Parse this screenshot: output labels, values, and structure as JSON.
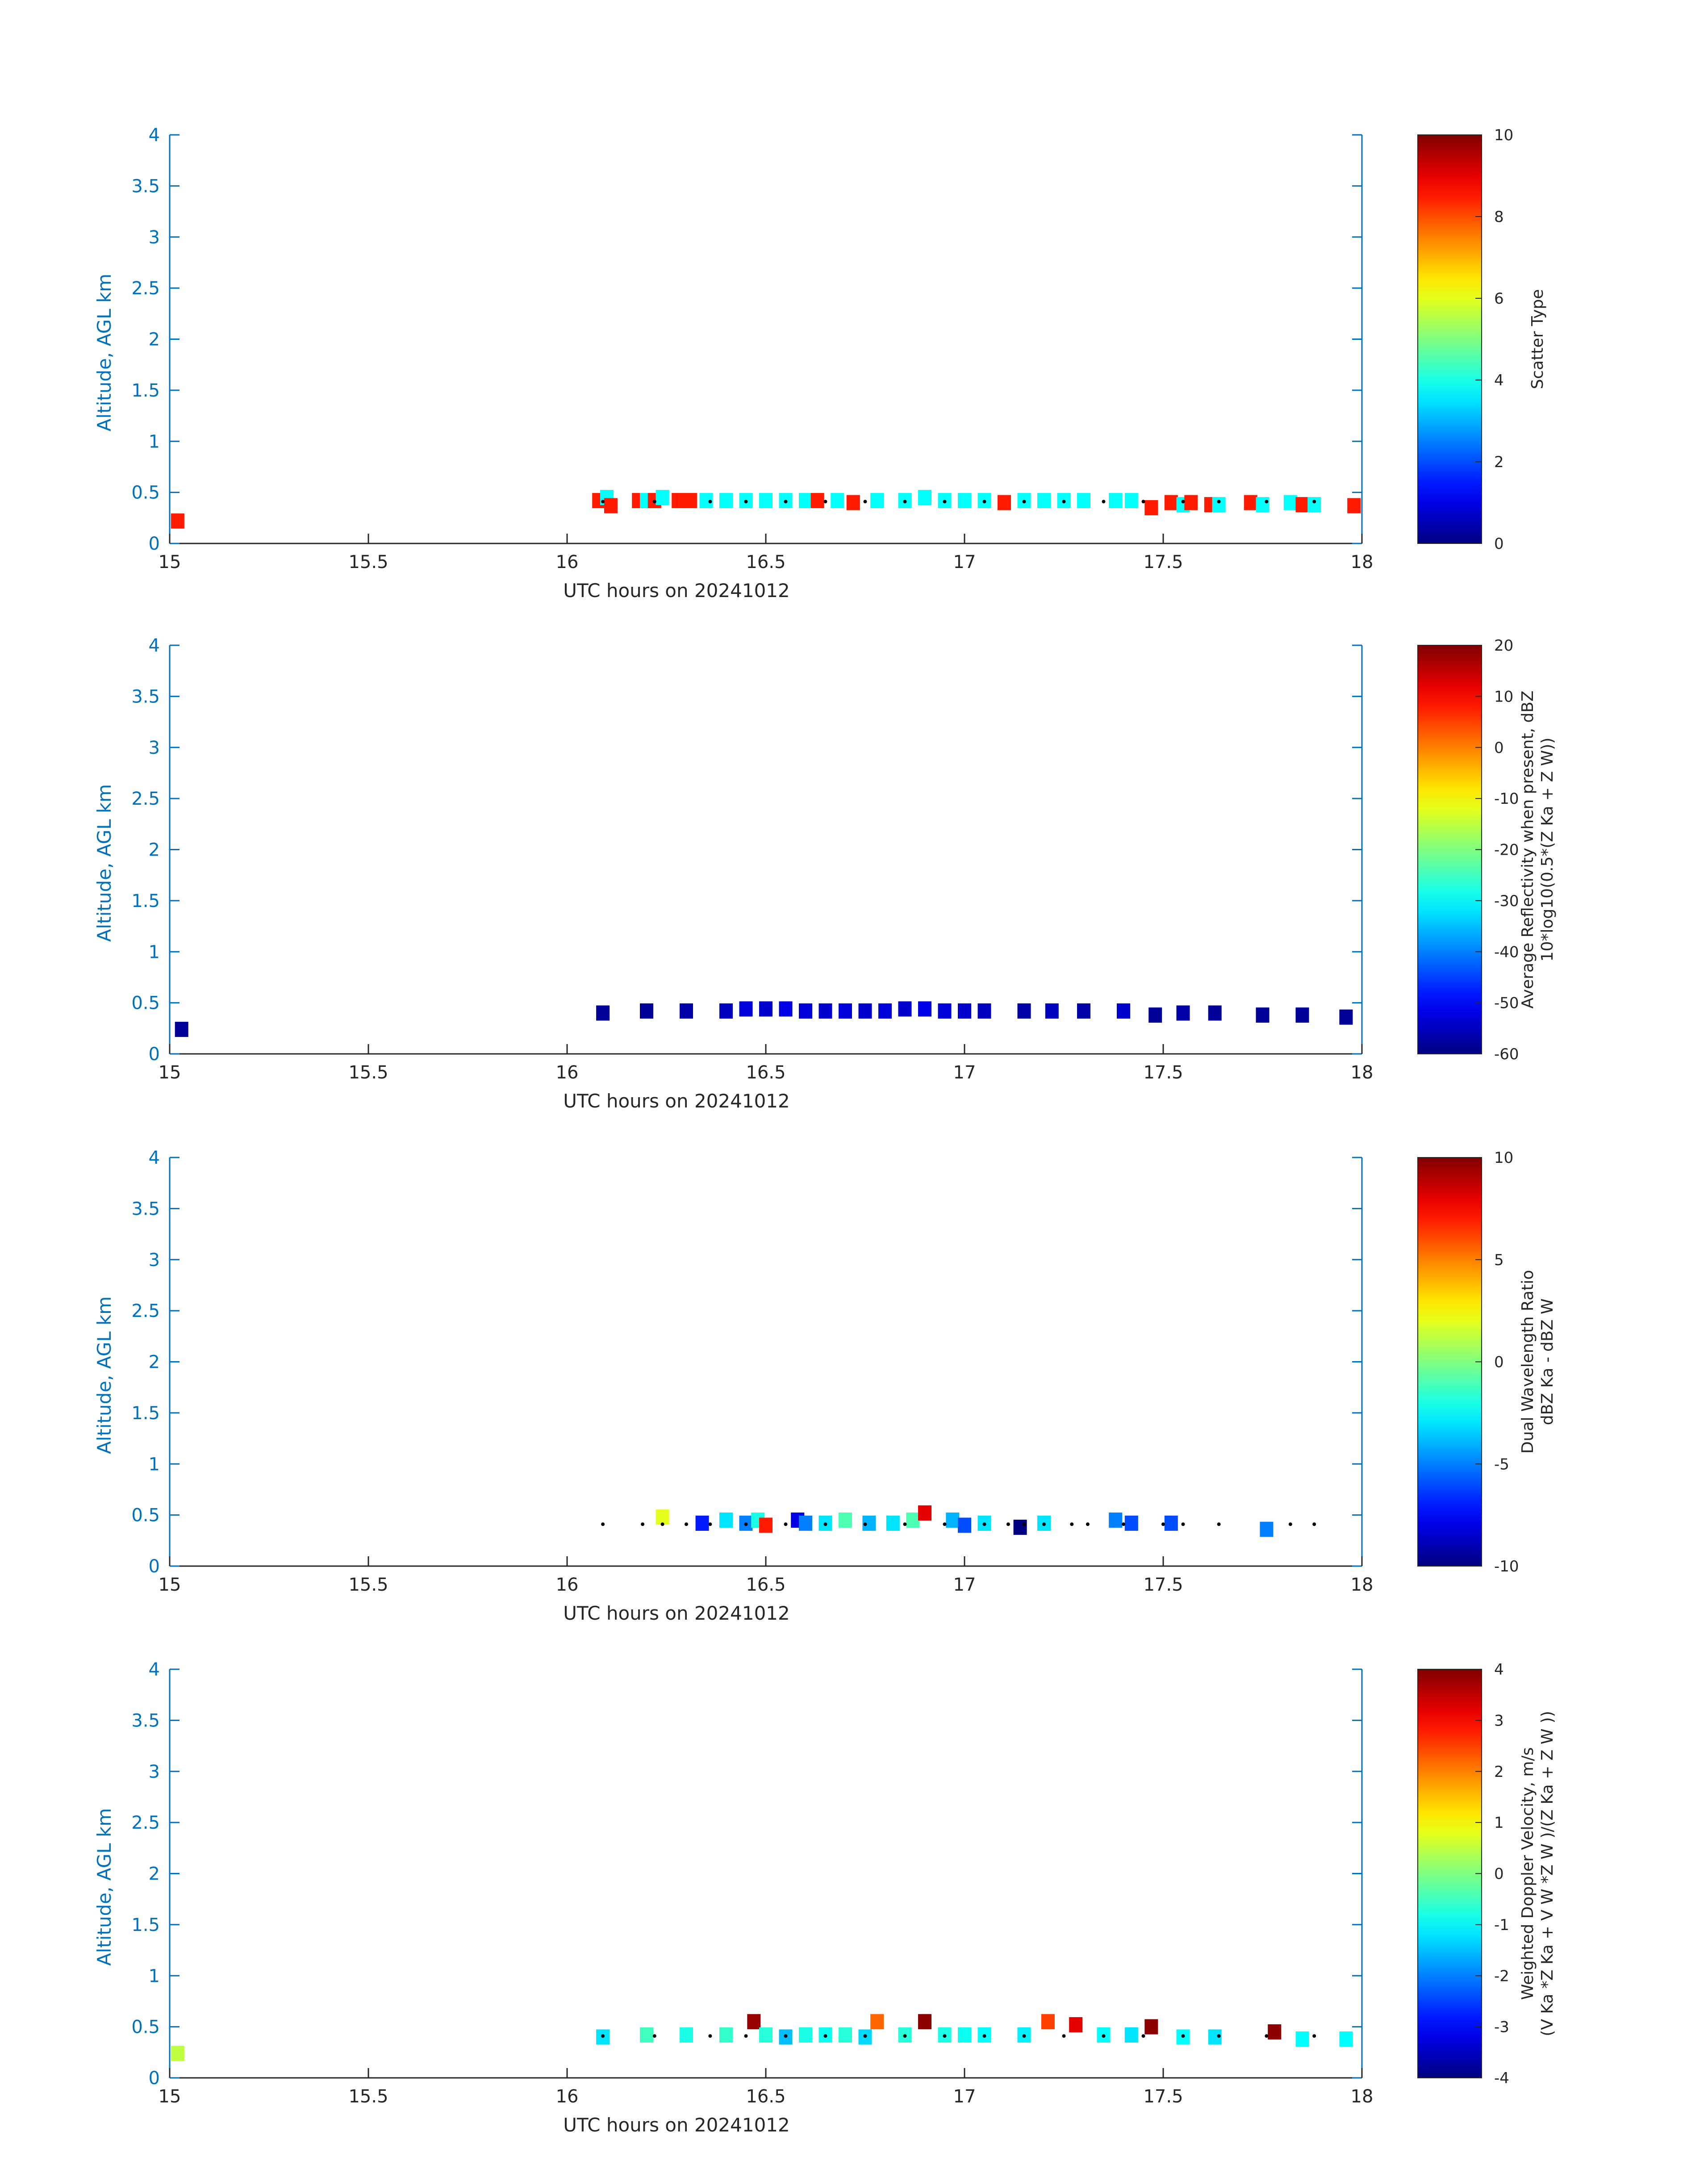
{
  "figure": {
    "common": {
      "xlim": [
        15,
        18
      ],
      "ylim": [
        0,
        4
      ],
      "xticks": [
        "15",
        "15.5",
        "16",
        "16.5",
        "17",
        "17.5",
        "18"
      ],
      "yticks": [
        "0",
        "0.5",
        "1",
        "1.5",
        "2",
        "2.5",
        "3",
        "3.5",
        "4"
      ],
      "xlabel": "UTC hours on 20241012",
      "ylabel": "Altitude, AGL km",
      "axis_color": "#0072BD",
      "text_color": "#262626",
      "marker_color": "#000000",
      "colormap": "jet"
    },
    "panels": [
      {
        "name": "scatter-type",
        "colorbar": {
          "range": [
            0,
            10
          ],
          "ticks": [
            "0",
            "2",
            "4",
            "6",
            "8",
            "10"
          ],
          "title_lines": [
            "Scatter Type"
          ]
        }
      },
      {
        "name": "reflectivity",
        "colorbar": {
          "range": [
            -60,
            20
          ],
          "ticks": [
            "-60",
            "-50",
            "-40",
            "-30",
            "-20",
            "-10",
            "0",
            "10",
            "20"
          ],
          "title_lines": [
            "Average Reflectivity when present, dBZ",
            "10*log10(0.5*(Z Ka + Z W))"
          ]
        }
      },
      {
        "name": "dwr",
        "colorbar": {
          "range": [
            -10,
            10
          ],
          "ticks": [
            "-10",
            "-5",
            "0",
            "5",
            "10"
          ],
          "title_lines": [
            "Dual Wavelength Ratio",
            "dBZ Ka - dBZ W"
          ]
        }
      },
      {
        "name": "doppler-velocity",
        "colorbar": {
          "range": [
            -4,
            4
          ],
          "ticks": [
            "-4",
            "-3",
            "-2",
            "-1",
            "0",
            "1",
            "2",
            "3",
            "4"
          ],
          "title_lines": [
            "Weighted Doppler Velocity, m/s",
            "(V Ka *Z Ka + V W *Z W )/(Z Ka + Z W ))"
          ]
        }
      }
    ]
  },
  "chart_data": [
    {
      "type": "heatmap",
      "title": "",
      "xlabel": "UTC hours on 20241012",
      "ylabel": "Altitude, AGL km",
      "xlim": [
        15,
        18
      ],
      "ylim": [
        0,
        4
      ],
      "colorbar_label": "Scatter Type",
      "clim": [
        0,
        10
      ],
      "cells": [
        {
          "t": 15.02,
          "alt": 0.22,
          "v": 8.5
        },
        {
          "t": 16.08,
          "alt": 0.42,
          "v": 8.5
        },
        {
          "t": 16.1,
          "alt": 0.45,
          "v": 3.8
        },
        {
          "t": 16.11,
          "alt": 0.37,
          "v": 8.5
        },
        {
          "t": 16.18,
          "alt": 0.42,
          "v": 8.5
        },
        {
          "t": 16.2,
          "alt": 0.42,
          "v": 3.8
        },
        {
          "t": 16.22,
          "alt": 0.42,
          "v": 8.5
        },
        {
          "t": 16.24,
          "alt": 0.45,
          "v": 3.8
        },
        {
          "t": 16.28,
          "alt": 0.42,
          "v": 8.5
        },
        {
          "t": 16.31,
          "alt": 0.42,
          "v": 8.5
        },
        {
          "t": 16.35,
          "alt": 0.42,
          "v": 3.8
        },
        {
          "t": 16.4,
          "alt": 0.42,
          "v": 3.8
        },
        {
          "t": 16.45,
          "alt": 0.42,
          "v": 3.8
        },
        {
          "t": 16.5,
          "alt": 0.42,
          "v": 3.8
        },
        {
          "t": 16.55,
          "alt": 0.42,
          "v": 3.8
        },
        {
          "t": 16.6,
          "alt": 0.42,
          "v": 3.8
        },
        {
          "t": 16.63,
          "alt": 0.42,
          "v": 8.5
        },
        {
          "t": 16.68,
          "alt": 0.42,
          "v": 3.8
        },
        {
          "t": 16.72,
          "alt": 0.4,
          "v": 8.5
        },
        {
          "t": 16.78,
          "alt": 0.42,
          "v": 3.8
        },
        {
          "t": 16.85,
          "alt": 0.42,
          "v": 3.8
        },
        {
          "t": 16.9,
          "alt": 0.45,
          "v": 3.8
        },
        {
          "t": 16.95,
          "alt": 0.42,
          "v": 3.8
        },
        {
          "t": 17.0,
          "alt": 0.42,
          "v": 3.8
        },
        {
          "t": 17.05,
          "alt": 0.42,
          "v": 3.8
        },
        {
          "t": 17.1,
          "alt": 0.4,
          "v": 8.5
        },
        {
          "t": 17.15,
          "alt": 0.42,
          "v": 3.8
        },
        {
          "t": 17.2,
          "alt": 0.42,
          "v": 3.8
        },
        {
          "t": 17.25,
          "alt": 0.42,
          "v": 3.8
        },
        {
          "t": 17.3,
          "alt": 0.42,
          "v": 3.8
        },
        {
          "t": 17.38,
          "alt": 0.42,
          "v": 3.8
        },
        {
          "t": 17.42,
          "alt": 0.42,
          "v": 3.8
        },
        {
          "t": 17.47,
          "alt": 0.35,
          "v": 8.5
        },
        {
          "t": 17.52,
          "alt": 0.4,
          "v": 8.5
        },
        {
          "t": 17.55,
          "alt": 0.38,
          "v": 3.8
        },
        {
          "t": 17.57,
          "alt": 0.4,
          "v": 8.5
        },
        {
          "t": 17.62,
          "alt": 0.38,
          "v": 8.5
        },
        {
          "t": 17.64,
          "alt": 0.38,
          "v": 3.8
        },
        {
          "t": 17.72,
          "alt": 0.4,
          "v": 8.5
        },
        {
          "t": 17.75,
          "alt": 0.38,
          "v": 3.8
        },
        {
          "t": 17.82,
          "alt": 0.4,
          "v": 3.8
        },
        {
          "t": 17.85,
          "alt": 0.38,
          "v": 8.5
        },
        {
          "t": 17.88,
          "alt": 0.38,
          "v": 3.8
        },
        {
          "t": 17.98,
          "alt": 0.37,
          "v": 8.5
        }
      ],
      "dots": [
        16.09,
        16.22,
        16.36,
        16.45,
        16.55,
        16.65,
        16.75,
        16.85,
        16.95,
        17.05,
        17.15,
        17.25,
        17.35,
        17.45,
        17.55,
        17.64,
        17.76,
        17.88
      ]
    },
    {
      "type": "heatmap",
      "title": "",
      "xlabel": "UTC hours on 20241012",
      "ylabel": "Altitude, AGL km",
      "xlim": [
        15,
        18
      ],
      "ylim": [
        0,
        4
      ],
      "colorbar_label": "Average Reflectivity when present, dBZ 10*log10(0.5*(Z Ka + Z W))",
      "clim": [
        -60,
        20
      ],
      "cells": [
        {
          "t": 15.03,
          "alt": 0.24,
          "v": -58
        },
        {
          "t": 16.09,
          "alt": 0.4,
          "v": -58
        },
        {
          "t": 16.2,
          "alt": 0.42,
          "v": -58
        },
        {
          "t": 16.3,
          "alt": 0.42,
          "v": -57
        },
        {
          "t": 16.4,
          "alt": 0.42,
          "v": -55
        },
        {
          "t": 16.45,
          "alt": 0.44,
          "v": -53
        },
        {
          "t": 16.5,
          "alt": 0.44,
          "v": -54
        },
        {
          "t": 16.55,
          "alt": 0.44,
          "v": -52
        },
        {
          "t": 16.6,
          "alt": 0.42,
          "v": -53
        },
        {
          "t": 16.65,
          "alt": 0.42,
          "v": -54
        },
        {
          "t": 16.7,
          "alt": 0.42,
          "v": -53
        },
        {
          "t": 16.75,
          "alt": 0.42,
          "v": -54
        },
        {
          "t": 16.8,
          "alt": 0.42,
          "v": -53
        },
        {
          "t": 16.85,
          "alt": 0.44,
          "v": -54
        },
        {
          "t": 16.9,
          "alt": 0.44,
          "v": -52
        },
        {
          "t": 16.95,
          "alt": 0.42,
          "v": -53
        },
        {
          "t": 17.0,
          "alt": 0.42,
          "v": -54
        },
        {
          "t": 17.05,
          "alt": 0.42,
          "v": -55
        },
        {
          "t": 17.15,
          "alt": 0.42,
          "v": -57
        },
        {
          "t": 17.22,
          "alt": 0.42,
          "v": -55
        },
        {
          "t": 17.3,
          "alt": 0.42,
          "v": -57
        },
        {
          "t": 17.4,
          "alt": 0.42,
          "v": -54
        },
        {
          "t": 17.48,
          "alt": 0.38,
          "v": -58
        },
        {
          "t": 17.55,
          "alt": 0.4,
          "v": -57
        },
        {
          "t": 17.63,
          "alt": 0.4,
          "v": -58
        },
        {
          "t": 17.75,
          "alt": 0.38,
          "v": -58
        },
        {
          "t": 17.85,
          "alt": 0.38,
          "v": -58
        },
        {
          "t": 17.96,
          "alt": 0.36,
          "v": -58
        }
      ],
      "dots": []
    },
    {
      "type": "heatmap",
      "title": "",
      "xlabel": "UTC hours on 20241012",
      "ylabel": "Altitude, AGL km",
      "xlim": [
        15,
        18
      ],
      "ylim": [
        0,
        4
      ],
      "colorbar_label": "Dual Wavelength Ratio dBZ Ka - dBZ W",
      "clim": [
        -10,
        10
      ],
      "cells": [
        {
          "t": 16.24,
          "alt": 0.48,
          "v": 2
        },
        {
          "t": 16.34,
          "alt": 0.42,
          "v": -7
        },
        {
          "t": 16.4,
          "alt": 0.45,
          "v": -3
        },
        {
          "t": 16.45,
          "alt": 0.42,
          "v": -5
        },
        {
          "t": 16.48,
          "alt": 0.45,
          "v": -2
        },
        {
          "t": 16.5,
          "alt": 0.4,
          "v": 7
        },
        {
          "t": 16.58,
          "alt": 0.45,
          "v": -8
        },
        {
          "t": 16.6,
          "alt": 0.42,
          "v": -5
        },
        {
          "t": 16.65,
          "alt": 0.42,
          "v": -3
        },
        {
          "t": 16.7,
          "alt": 0.45,
          "v": -1
        },
        {
          "t": 16.76,
          "alt": 0.42,
          "v": -4
        },
        {
          "t": 16.82,
          "alt": 0.42,
          "v": -3
        },
        {
          "t": 16.87,
          "alt": 0.45,
          "v": -1
        },
        {
          "t": 16.9,
          "alt": 0.52,
          "v": 8
        },
        {
          "t": 16.97,
          "alt": 0.45,
          "v": -4
        },
        {
          "t": 17.0,
          "alt": 0.4,
          "v": -6
        },
        {
          "t": 17.05,
          "alt": 0.42,
          "v": -3
        },
        {
          "t": 17.14,
          "alt": 0.38,
          "v": -10
        },
        {
          "t": 17.2,
          "alt": 0.42,
          "v": -3
        },
        {
          "t": 17.38,
          "alt": 0.45,
          "v": -5
        },
        {
          "t": 17.42,
          "alt": 0.42,
          "v": -6
        },
        {
          "t": 17.52,
          "alt": 0.42,
          "v": -6
        },
        {
          "t": 17.76,
          "alt": 0.36,
          "v": -5
        }
      ],
      "dots": [
        16.09,
        16.19,
        16.24,
        16.3,
        16.36,
        16.45,
        16.55,
        16.65,
        16.75,
        16.85,
        16.95,
        17.05,
        17.11,
        17.15,
        17.2,
        17.27,
        17.31,
        17.4,
        17.5,
        17.55,
        17.64,
        17.82,
        17.88
      ]
    },
    {
      "type": "heatmap",
      "title": "",
      "xlabel": "UTC hours on 20241012",
      "ylabel": "Altitude, AGL km",
      "xlim": [
        15,
        18
      ],
      "ylim": [
        0,
        4
      ],
      "colorbar_label": "Weighted Doppler Velocity, m/s (V Ka *Z Ka + V W *Z W )/(Z Ka + Z W ))",
      "clim": [
        -4,
        4
      ],
      "cells": [
        {
          "t": 15.02,
          "alt": 0.24,
          "v": 0.5
        },
        {
          "t": 16.09,
          "alt": 0.4,
          "v": -1.2
        },
        {
          "t": 16.2,
          "alt": 0.42,
          "v": -0.5
        },
        {
          "t": 16.3,
          "alt": 0.42,
          "v": -0.8
        },
        {
          "t": 16.4,
          "alt": 0.42,
          "v": -0.6
        },
        {
          "t": 16.47,
          "alt": 0.55,
          "v": 3.8
        },
        {
          "t": 16.5,
          "alt": 0.42,
          "v": -0.7
        },
        {
          "t": 16.55,
          "alt": 0.4,
          "v": -1.5
        },
        {
          "t": 16.6,
          "alt": 0.42,
          "v": -0.8
        },
        {
          "t": 16.65,
          "alt": 0.42,
          "v": -0.9
        },
        {
          "t": 16.7,
          "alt": 0.42,
          "v": -0.7
        },
        {
          "t": 16.75,
          "alt": 0.4,
          "v": -1.3
        },
        {
          "t": 16.78,
          "alt": 0.55,
          "v": 2.2
        },
        {
          "t": 16.85,
          "alt": 0.42,
          "v": -0.7
        },
        {
          "t": 16.9,
          "alt": 0.55,
          "v": 3.9
        },
        {
          "t": 16.95,
          "alt": 0.42,
          "v": -0.8
        },
        {
          "t": 17.0,
          "alt": 0.42,
          "v": -0.9
        },
        {
          "t": 17.05,
          "alt": 0.42,
          "v": -1.0
        },
        {
          "t": 17.15,
          "alt": 0.42,
          "v": -1.1
        },
        {
          "t": 17.21,
          "alt": 0.55,
          "v": 2.5
        },
        {
          "t": 17.28,
          "alt": 0.52,
          "v": 3.2
        },
        {
          "t": 17.35,
          "alt": 0.42,
          "v": -1.0
        },
        {
          "t": 17.42,
          "alt": 0.42,
          "v": -1.2
        },
        {
          "t": 17.47,
          "alt": 0.5,
          "v": 3.9
        },
        {
          "t": 17.55,
          "alt": 0.4,
          "v": -1.0
        },
        {
          "t": 17.63,
          "alt": 0.4,
          "v": -1.2
        },
        {
          "t": 17.78,
          "alt": 0.45,
          "v": 3.9
        },
        {
          "t": 17.85,
          "alt": 0.38,
          "v": -1.0
        },
        {
          "t": 17.96,
          "alt": 0.38,
          "v": -1.0
        }
      ],
      "dots": [
        16.09,
        16.22,
        16.36,
        16.45,
        16.55,
        16.65,
        16.75,
        16.85,
        16.95,
        17.05,
        17.15,
        17.25,
        17.35,
        17.45,
        17.55,
        17.64,
        17.76,
        17.88
      ]
    }
  ]
}
